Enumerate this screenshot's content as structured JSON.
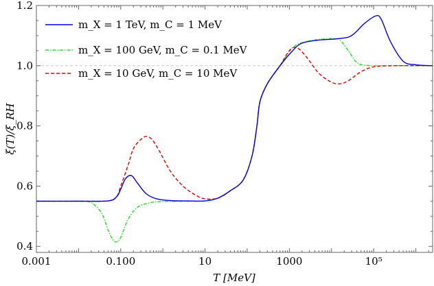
{
  "chart_data": {
    "type": "line",
    "xlabel": "T [MeV]",
    "ylabel": "ξ(T)/ξ_RH",
    "xscale": "log",
    "xlim": [
      0.001,
      2500000
    ],
    "ylim": [
      0.38,
      1.2
    ],
    "x_ticks": [
      {
        "value": 0.001,
        "label": "0.001"
      },
      {
        "value": 0.1,
        "label": "0.100"
      },
      {
        "value": 10,
        "label": "10"
      },
      {
        "value": 1000,
        "label": "1000"
      },
      {
        "value": 100000,
        "label": "10⁵"
      }
    ],
    "y_ticks": [
      {
        "value": 0.4,
        "label": "0.4"
      },
      {
        "value": 0.6,
        "label": "0.6"
      },
      {
        "value": 0.8,
        "label": "0.8"
      },
      {
        "value": 1.0,
        "label": "1.0"
      },
      {
        "value": 1.2,
        "label": "1.2"
      }
    ],
    "reference_line": {
      "y": 1.0,
      "style": "dashed",
      "color": "#c8c8c8"
    },
    "legend_position": "top-left",
    "series": [
      {
        "name": "m_X = 1 TeV,   m_C = 1 MeV",
        "color": "#0000dd",
        "dash": "solid",
        "points": [
          [
            0.001,
            0.55
          ],
          [
            0.01,
            0.55
          ],
          [
            0.05,
            0.551
          ],
          [
            0.08,
            0.565
          ],
          [
            0.1,
            0.59
          ],
          [
            0.13,
            0.625
          ],
          [
            0.18,
            0.635
          ],
          [
            0.25,
            0.61
          ],
          [
            0.4,
            0.575
          ],
          [
            0.7,
            0.558
          ],
          [
            1.5,
            0.552
          ],
          [
            4,
            0.551
          ],
          [
            10,
            0.551
          ],
          [
            20,
            0.56
          ],
          [
            40,
            0.585
          ],
          [
            80,
            0.62
          ],
          [
            130,
            0.7
          ],
          [
            170,
            0.8
          ],
          [
            200,
            0.88
          ],
          [
            300,
            0.94
          ],
          [
            600,
            1.0
          ],
          [
            1200,
            1.05
          ],
          [
            2000,
            1.075
          ],
          [
            5000,
            1.085
          ],
          [
            15000,
            1.09
          ],
          [
            30000,
            1.1
          ],
          [
            60000,
            1.14
          ],
          [
            110000,
            1.165
          ],
          [
            150000,
            1.155
          ],
          [
            250000,
            1.08
          ],
          [
            500000,
            1.015
          ],
          [
            1000000,
            1.003
          ],
          [
            2500000,
            1.0
          ]
        ]
      },
      {
        "name": "m_X = 100 GeV, m_C = 0.1 MeV",
        "color": "#22dd22",
        "dash": "dot-dash",
        "points": [
          [
            0.001,
            0.55
          ],
          [
            0.01,
            0.55
          ],
          [
            0.02,
            0.545
          ],
          [
            0.035,
            0.51
          ],
          [
            0.05,
            0.455
          ],
          [
            0.065,
            0.422
          ],
          [
            0.08,
            0.415
          ],
          [
            0.1,
            0.43
          ],
          [
            0.15,
            0.49
          ],
          [
            0.25,
            0.53
          ],
          [
            0.5,
            0.545
          ],
          [
            1,
            0.549
          ],
          [
            4,
            0.55
          ],
          [
            10,
            0.551
          ],
          [
            20,
            0.56
          ],
          [
            40,
            0.585
          ],
          [
            80,
            0.62
          ],
          [
            130,
            0.7
          ],
          [
            170,
            0.8
          ],
          [
            200,
            0.88
          ],
          [
            300,
            0.94
          ],
          [
            600,
            1.0
          ],
          [
            1200,
            1.06
          ],
          [
            2500,
            1.08
          ],
          [
            6000,
            1.088
          ],
          [
            12000,
            1.09
          ],
          [
            16000,
            1.085
          ],
          [
            25000,
            1.05
          ],
          [
            40000,
            1.01
          ],
          [
            70000,
            1.001
          ],
          [
            150000,
            1.0
          ],
          [
            2500000,
            1.0
          ]
        ]
      },
      {
        "name": "m_X = 10 GeV,   m_C = 10 MeV",
        "color": "#dd0000",
        "dash": "dashed",
        "points": [
          [
            0.001,
            0.55
          ],
          [
            0.01,
            0.55
          ],
          [
            0.05,
            0.551
          ],
          [
            0.08,
            0.565
          ],
          [
            0.1,
            0.6
          ],
          [
            0.15,
            0.67
          ],
          [
            0.2,
            0.725
          ],
          [
            0.3,
            0.755
          ],
          [
            0.4,
            0.765
          ],
          [
            0.55,
            0.755
          ],
          [
            0.8,
            0.72
          ],
          [
            1.5,
            0.65
          ],
          [
            3,
            0.6
          ],
          [
            6,
            0.57
          ],
          [
            10,
            0.558
          ],
          [
            20,
            0.56
          ],
          [
            40,
            0.585
          ],
          [
            80,
            0.62
          ],
          [
            130,
            0.7
          ],
          [
            170,
            0.8
          ],
          [
            200,
            0.88
          ],
          [
            300,
            0.94
          ],
          [
            600,
            1.0
          ],
          [
            1000,
            1.05
          ],
          [
            1500,
            1.06
          ],
          [
            2500,
            1.03
          ],
          [
            5000,
            0.975
          ],
          [
            10000,
            0.945
          ],
          [
            16000,
            0.94
          ],
          [
            25000,
            0.95
          ],
          [
            50000,
            0.98
          ],
          [
            100000,
            0.996
          ],
          [
            300000,
            1.0
          ],
          [
            2500000,
            1.0
          ]
        ]
      }
    ]
  }
}
